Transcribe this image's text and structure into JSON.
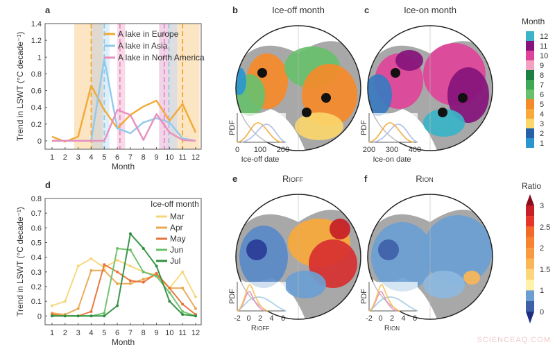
{
  "chart_data": [
    {
      "panel": "a",
      "type": "line",
      "xlabel": "Month",
      "ylabel": "Trend in LSWT (°C decade⁻¹)",
      "x": [
        1,
        2,
        3,
        4,
        5,
        6,
        7,
        8,
        9,
        10,
        11,
        12
      ],
      "ylim": [
        -0.1,
        1.4
      ],
      "yticks": [
        0,
        0.2,
        0.4,
        0.6,
        0.8,
        1,
        1.2,
        1.4
      ],
      "legend": "top-right",
      "series": [
        {
          "name": "A lake in Europe",
          "color": "#f0a830",
          "values": [
            0.05,
            -0.01,
            0.05,
            0.66,
            0.37,
            0.15,
            0.31,
            0.41,
            0.48,
            0.24,
            0.44,
            0.1
          ]
        },
        {
          "name": "A lake in Asia",
          "color": "#8ec8ec",
          "values": [
            0,
            0,
            0,
            0,
            0.98,
            0.15,
            0.09,
            0.22,
            0.27,
            0.22,
            0.03,
            0
          ]
        },
        {
          "name": "A lake in North America",
          "color": "#e88cbc",
          "values": [
            0,
            0,
            0,
            0,
            0,
            0.37,
            0.31,
            0.01,
            0.32,
            0.1,
            0.01,
            0
          ]
        }
      ],
      "shaded_ranges": [
        {
          "from": 2.7,
          "to": 4.0,
          "color": "#fbe0b8"
        },
        {
          "from": 4.0,
          "to": 4.9,
          "color": "#d9d2c8"
        },
        {
          "from": 4.9,
          "to": 5.4,
          "color": "#d8ecf8"
        },
        {
          "from": 6.0,
          "to": 6.6,
          "color": "#f8d2e4"
        },
        {
          "from": 9.2,
          "to": 9.9,
          "color": "#f0cce4"
        },
        {
          "from": 9.9,
          "to": 10.6,
          "color": "#d8d8dc"
        },
        {
          "from": 10.6,
          "to": 12.3,
          "color": "#fbe0b8"
        }
      ],
      "dashed_lines": [
        {
          "x": 4.0,
          "color": "#f0a830"
        },
        {
          "x": 5.0,
          "color": "#8ec8ec"
        },
        {
          "x": 6.2,
          "color": "#e88cbc"
        },
        {
          "x": 9.6,
          "color": "#e88cbc"
        },
        {
          "x": 9.95,
          "color": "#8ec8ec"
        },
        {
          "x": 11.0,
          "color": "#f0a830"
        }
      ]
    },
    {
      "panel": "d",
      "type": "line",
      "xlabel": "Month",
      "ylabel": "Trend in LSWT (°C decade⁻¹)",
      "x": [
        1,
        2,
        3,
        4,
        5,
        6,
        7,
        8,
        9,
        10,
        11,
        12
      ],
      "ylim": [
        -0.06,
        0.8
      ],
      "yticks": [
        0,
        0.1,
        0.2,
        0.3,
        0.4,
        0.5,
        0.6,
        0.7,
        0.8
      ],
      "legend": "top-right",
      "legend_title": "Ice-off month",
      "series": [
        {
          "name": "Mar",
          "color": "#f5d77a",
          "values": [
            0.07,
            0.1,
            0.34,
            0.39,
            0.33,
            0.38,
            0.34,
            0.3,
            0.28,
            0.19,
            0.3,
            0.13
          ]
        },
        {
          "name": "Apr",
          "color": "#eba650",
          "values": [
            0.02,
            0.01,
            0.05,
            0.31,
            0.31,
            0.22,
            0.22,
            0.25,
            0.28,
            0.19,
            0.19,
            0.05
          ]
        },
        {
          "name": "May",
          "color": "#e8733a",
          "values": [
            0.01,
            0,
            0,
            0.03,
            0.35,
            0.3,
            0.24,
            0.23,
            0.29,
            0.19,
            0.08,
            0.01
          ]
        },
        {
          "name": "Jun",
          "color": "#6cc06a",
          "values": [
            0,
            0,
            0,
            0,
            0.02,
            0.46,
            0.45,
            0.3,
            0.27,
            0.16,
            0.03,
            0
          ]
        },
        {
          "name": "Jul",
          "color": "#2f8f3f",
          "values": [
            0,
            0,
            0,
            0,
            0,
            0.07,
            0.56,
            0.46,
            0.34,
            0.1,
            0.01,
            0
          ]
        }
      ]
    }
  ],
  "panels": {
    "a": {
      "letter": "a"
    },
    "b": {
      "letter": "b",
      "title": "Ice-off month",
      "pdf_label": "PDF",
      "pdf_xlabel": "Ice-off date",
      "pdf_ticks": [
        "0",
        "100",
        "200"
      ]
    },
    "c": {
      "letter": "c",
      "title": "Ice-on month",
      "pdf_label": "PDF",
      "pdf_xlabel": "Ice-on date",
      "pdf_ticks": [
        "200",
        "300",
        "400"
      ]
    },
    "d": {
      "letter": "d"
    },
    "e": {
      "letter": "e",
      "title_main": "R",
      "title_sub": "IOFF",
      "pdf_label": "PDF",
      "pdf_xlabel_main": "R",
      "pdf_xlabel_sub": "IOFF",
      "pdf_ticks": [
        "-2",
        "0",
        "2",
        "4",
        "6"
      ]
    },
    "f": {
      "letter": "f",
      "title_main": "R",
      "title_sub": "ION",
      "pdf_label": "PDF",
      "pdf_xlabel_main": "R",
      "pdf_xlabel_sub": "ION",
      "pdf_ticks": [
        "-2",
        "0",
        "2",
        "4",
        "6"
      ]
    }
  },
  "month_colorbar": {
    "title": "Month",
    "labels": [
      "12",
      "11",
      "10",
      "9",
      "8",
      "7",
      "6",
      "5",
      "4",
      "3",
      "2",
      "1"
    ],
    "colors": [
      "#3ab4c8",
      "#86147c",
      "#e0449a",
      "#f4a2c0",
      "#1d8043",
      "#3fa856",
      "#69c06c",
      "#f58a2a",
      "#f9a93a",
      "#fbd66a",
      "#2461a8",
      "#2a96cf"
    ]
  },
  "ratio_colorbar": {
    "title": "Ratio",
    "labels": [
      "3",
      "2.5",
      "2",
      "1.5",
      "1",
      "0"
    ],
    "colors": [
      "#c81e26",
      "#e8352a",
      "#f26a28",
      "#f78330",
      "#f99a40",
      "#fbb658",
      "#fcd67a",
      "#fff2a8",
      "#6b9fd2",
      "#3e60a8"
    ],
    "arrow_top": "#8b0b1e",
    "arrow_bottom": "#1f2d80"
  },
  "watermark": "SCIENCEAQ.COM"
}
